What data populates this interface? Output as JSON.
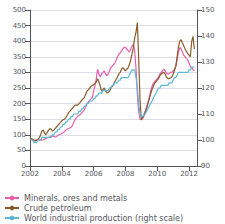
{
  "chart_data": {
    "type": "line",
    "x": [
      2002.0,
      2002.08,
      2002.17,
      2002.25,
      2002.33,
      2002.42,
      2002.5,
      2002.58,
      2002.67,
      2002.75,
      2002.83,
      2002.92,
      2003.0,
      2003.08,
      2003.17,
      2003.25,
      2003.33,
      2003.42,
      2003.5,
      2003.58,
      2003.67,
      2003.75,
      2003.83,
      2003.92,
      2004.0,
      2004.08,
      2004.17,
      2004.25,
      2004.33,
      2004.42,
      2004.5,
      2004.58,
      2004.67,
      2004.75,
      2004.83,
      2004.92,
      2005.0,
      2005.08,
      2005.17,
      2005.25,
      2005.33,
      2005.42,
      2005.5,
      2005.58,
      2005.67,
      2005.75,
      2005.83,
      2005.92,
      2006.0,
      2006.08,
      2006.17,
      2006.25,
      2006.33,
      2006.42,
      2006.5,
      2006.58,
      2006.67,
      2006.75,
      2006.83,
      2006.92,
      2007.0,
      2007.08,
      2007.17,
      2007.25,
      2007.33,
      2007.42,
      2007.5,
      2007.58,
      2007.67,
      2007.75,
      2007.83,
      2007.92,
      2008.0,
      2008.08,
      2008.17,
      2008.25,
      2008.33,
      2008.42,
      2008.5,
      2008.58,
      2008.67,
      2008.75,
      2008.83,
      2008.92,
      2009.0,
      2009.08,
      2009.17,
      2009.25,
      2009.33,
      2009.42,
      2009.5,
      2009.58,
      2009.67,
      2009.75,
      2009.83,
      2009.92,
      2010.0,
      2010.08,
      2010.17,
      2010.25,
      2010.33,
      2010.42,
      2010.5,
      2010.58,
      2010.67,
      2010.75,
      2010.83,
      2010.92,
      2011.0,
      2011.08,
      2011.17,
      2011.25,
      2011.33,
      2011.42,
      2011.5,
      2011.58,
      2011.67,
      2011.75,
      2011.83,
      2011.92,
      2012.0,
      2012.08,
      2012.17,
      2012.25,
      2012.33
    ],
    "series": [
      {
        "name": "Minerals, ores and metals",
        "color": "#e85fb0",
        "values": [
          88,
          87,
          85,
          84,
          83,
          84,
          85,
          84,
          83,
          83,
          84,
          86,
          88,
          90,
          92,
          93,
          95,
          96,
          94,
          93,
          95,
          98,
          100,
          102,
          105,
          107,
          110,
          115,
          118,
          120,
          122,
          124,
          130,
          140,
          148,
          155,
          160,
          162,
          165,
          170,
          175,
          180,
          190,
          200,
          205,
          210,
          215,
          220,
          240,
          255,
          280,
          310,
          295,
          285,
          295,
          300,
          305,
          295,
          290,
          295,
          305,
          315,
          320,
          325,
          330,
          340,
          350,
          358,
          362,
          368,
          375,
          380,
          380,
          375,
          370,
          365,
          375,
          385,
          390,
          370,
          310,
          230,
          175,
          150,
          148,
          152,
          160,
          175,
          190,
          205,
          220,
          240,
          255,
          265,
          270,
          275,
          280,
          285,
          295,
          300,
          305,
          310,
          305,
          298,
          295,
          295,
          300,
          300,
          305,
          310,
          320,
          340,
          365,
          380,
          375,
          365,
          355,
          350,
          345,
          340,
          330,
          320,
          315,
          308,
          305
        ]
      },
      {
        "name": "Crude petroleum",
        "color": "#8b5a2b",
        "values": [
          90,
          88,
          85,
          82,
          80,
          82,
          86,
          90,
          100,
          112,
          115,
          105,
          100,
          108,
          115,
          120,
          118,
          112,
          115,
          120,
          125,
          130,
          135,
          140,
          145,
          148,
          150,
          155,
          162,
          170,
          175,
          180,
          185,
          190,
          195,
          195,
          195,
          200,
          205,
          210,
          215,
          220,
          230,
          240,
          245,
          250,
          255,
          258,
          260,
          265,
          270,
          280,
          270,
          255,
          240,
          245,
          250,
          240,
          235,
          235,
          240,
          250,
          255,
          260,
          270,
          278,
          285,
          295,
          300,
          310,
          315,
          310,
          305,
          310,
          315,
          325,
          340,
          360,
          380,
          410,
          430,
          460,
          350,
          210,
          148,
          155,
          165,
          175,
          185,
          200,
          215,
          230,
          245,
          255,
          265,
          270,
          275,
          280,
          290,
          295,
          298,
          300,
          295,
          285,
          280,
          280,
          282,
          285,
          295,
          305,
          320,
          350,
          380,
          400,
          405,
          395,
          385,
          375,
          368,
          360,
          355,
          350,
          400,
          415,
          375
        ]
      },
      {
        "name": "World industrial production (right scale)",
        "color": "#5bb8d4",
        "axis": "y2",
        "values": [
          100,
          100,
          100,
          99,
          99,
          99,
          100,
          100,
          100,
          101,
          101,
          101,
          101,
          101,
          101,
          101,
          101,
          102,
          102,
          103,
          103,
          104,
          104,
          105,
          105,
          106,
          106,
          107,
          107,
          108,
          108,
          109,
          109,
          110,
          110,
          110,
          110,
          111,
          111,
          112,
          112,
          113,
          113,
          114,
          114,
          115,
          115,
          115,
          116,
          116,
          117,
          117,
          118,
          118,
          118,
          119,
          119,
          119,
          119,
          119,
          120,
          120,
          121,
          121,
          122,
          122,
          122,
          123,
          123,
          124,
          124,
          124,
          124,
          124,
          124,
          125,
          126,
          127,
          127,
          127,
          124,
          120,
          114,
          110,
          109,
          109,
          110,
          110,
          111,
          112,
          113,
          114,
          115,
          116,
          117,
          118,
          119,
          120,
          120,
          121,
          121,
          121,
          121,
          121,
          121,
          122,
          122,
          122,
          123,
          124,
          124,
          125,
          126,
          126,
          126,
          126,
          126,
          126,
          126,
          126,
          127,
          127,
          128,
          128,
          128
        ]
      }
    ],
    "xlim": [
      2002.0,
      2012.5
    ],
    "xticks": [
      2002,
      2004,
      2006,
      2008,
      2010,
      2012
    ],
    "ylim": [
      0,
      500
    ],
    "yticks": [
      0,
      50,
      100,
      150,
      200,
      250,
      300,
      350,
      400,
      450,
      500
    ],
    "y2lim": [
      90,
      150
    ],
    "y2ticks": [
      90,
      100,
      110,
      120,
      130,
      140,
      150
    ],
    "grid": true,
    "legend": "lower left"
  }
}
